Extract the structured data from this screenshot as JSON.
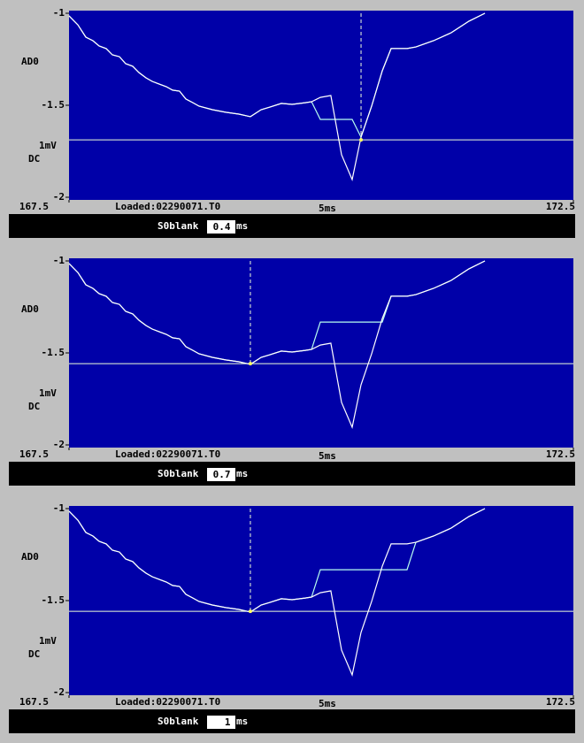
{
  "chart_data": [
    {
      "type": "line",
      "y_label": "AD0",
      "scale_label": "1mV",
      "coupling": "DC",
      "file": "Loaded:02290071.T0",
      "time_scale": "5ms",
      "blank_label": "S0blank",
      "blank_value": " 0.4",
      "blank_unit": "ms",
      "xlim": [
        167.5,
        172.5
      ],
      "xticks": [
        167.5,
        172.5
      ],
      "ylim": [
        -2,
        -1
      ],
      "yticks": [
        -1,
        -1.5,
        -2
      ],
      "x": [
        167.5,
        167.588,
        167.667,
        167.737,
        167.798,
        167.868,
        167.93,
        168.0,
        168.061,
        168.132,
        168.193,
        168.263,
        168.325,
        168.395,
        168.465,
        168.526,
        168.596,
        168.658,
        168.728,
        168.789,
        168.921,
        169.053,
        169.184,
        169.298,
        169.404,
        169.491,
        169.605,
        169.711,
        169.842,
        169.904,
        169.991,
        170.096,
        170.202,
        170.307,
        170.395,
        170.5,
        170.605,
        170.693,
        170.851,
        170.939,
        171.114,
        171.289,
        171.465,
        171.623
      ],
      "series": [
        {
          "color": "#b8fff0",
          "values": [
            -1.014,
            -1.063,
            -1.13,
            -1.149,
            -1.178,
            -1.192,
            -1.226,
            -1.236,
            -1.274,
            -1.288,
            -1.322,
            -1.351,
            -1.37,
            -1.385,
            -1.399,
            -1.418,
            -1.423,
            -1.466,
            -1.486,
            -1.505,
            -1.524,
            -1.538,
            -1.548,
            -1.562,
            -1.524,
            -1.51,
            -1.49,
            -1.495,
            -1.486,
            -1.481,
            -1.577,
            -1.577,
            -1.577,
            -1.577,
            -1.673,
            -1.505,
            -1.313,
            -1.192,
            -1.192,
            -1.183,
            -1.149,
            -1.106,
            -1.043,
            -1.0
          ]
        },
        {
          "color": "#ffffff",
          "values": [
            -1.014,
            -1.063,
            -1.13,
            -1.149,
            -1.178,
            -1.192,
            -1.226,
            -1.236,
            -1.274,
            -1.288,
            -1.322,
            -1.351,
            -1.37,
            -1.385,
            -1.399,
            -1.418,
            -1.423,
            -1.466,
            -1.486,
            -1.505,
            -1.524,
            -1.538,
            -1.548,
            -1.562,
            -1.524,
            -1.51,
            -1.49,
            -1.495,
            -1.486,
            -1.481,
            -1.457,
            -1.447,
            -1.769,
            -1.904,
            -1.673,
            -1.505,
            -1.313,
            -1.192,
            -1.192,
            -1.183,
            -1.149,
            -1.106,
            -1.043,
            -1.0
          ]
        }
      ],
      "cursor": {
        "x": 170.395,
        "y": -1.688,
        "color": "#f0ffd8"
      }
    },
    {
      "type": "line",
      "y_label": "AD0",
      "scale_label": "1mV",
      "coupling": "DC",
      "file": "Loaded:02290071.T0",
      "time_scale": "5ms",
      "blank_label": "S0blank",
      "blank_value": " 0.7",
      "blank_unit": "ms",
      "xlim": [
        167.5,
        172.5
      ],
      "xticks": [
        167.5,
        172.5
      ],
      "ylim": [
        -2,
        -1
      ],
      "yticks": [
        -1,
        -1.5,
        -2
      ],
      "x": [
        167.5,
        167.588,
        167.667,
        167.737,
        167.798,
        167.868,
        167.93,
        168.0,
        168.061,
        168.132,
        168.193,
        168.263,
        168.325,
        168.395,
        168.465,
        168.526,
        168.596,
        168.658,
        168.728,
        168.789,
        168.921,
        169.053,
        169.184,
        169.298,
        169.404,
        169.491,
        169.605,
        169.711,
        169.842,
        169.904,
        169.991,
        170.096,
        170.202,
        170.307,
        170.395,
        170.5,
        170.605,
        170.693,
        170.851,
        170.939,
        171.114,
        171.289,
        171.465,
        171.623
      ],
      "series": [
        {
          "color": "#b8fff0",
          "values": [
            -1.014,
            -1.063,
            -1.13,
            -1.149,
            -1.178,
            -1.192,
            -1.226,
            -1.236,
            -1.274,
            -1.288,
            -1.322,
            -1.351,
            -1.37,
            -1.385,
            -1.399,
            -1.418,
            -1.423,
            -1.466,
            -1.486,
            -1.505,
            -1.524,
            -1.538,
            -1.548,
            -1.562,
            -1.524,
            -1.51,
            -1.49,
            -1.495,
            -1.486,
            -1.481,
            -1.332,
            -1.332,
            -1.332,
            -1.332,
            -1.332,
            -1.332,
            -1.332,
            -1.192,
            -1.192,
            -1.183,
            -1.149,
            -1.106,
            -1.043,
            -1.0
          ]
        },
        {
          "color": "#ffffff",
          "values": [
            -1.014,
            -1.063,
            -1.13,
            -1.149,
            -1.178,
            -1.192,
            -1.226,
            -1.236,
            -1.274,
            -1.288,
            -1.322,
            -1.351,
            -1.37,
            -1.385,
            -1.399,
            -1.418,
            -1.423,
            -1.466,
            -1.486,
            -1.505,
            -1.524,
            -1.538,
            -1.548,
            -1.562,
            -1.524,
            -1.51,
            -1.49,
            -1.495,
            -1.486,
            -1.481,
            -1.457,
            -1.447,
            -1.769,
            -1.904,
            -1.673,
            -1.505,
            -1.313,
            -1.192,
            -1.192,
            -1.183,
            -1.149,
            -1.106,
            -1.043,
            -1.0
          ]
        }
      ],
      "cursor": {
        "x": 169.298,
        "y": -1.558,
        "color": "#f0ffd8"
      }
    },
    {
      "type": "line",
      "y_label": "AD0",
      "scale_label": "1mV",
      "coupling": "DC",
      "file": "Loaded:02290071.T0",
      "time_scale": "5ms",
      "blank_label": "S0blank",
      "blank_value": "   1",
      "blank_unit": "ms",
      "xlim": [
        167.5,
        172.5
      ],
      "xticks": [
        167.5,
        172.5
      ],
      "ylim": [
        -2,
        -1
      ],
      "yticks": [
        -1,
        -1.5,
        -2
      ],
      "x": [
        167.5,
        167.588,
        167.667,
        167.737,
        167.798,
        167.868,
        167.93,
        168.0,
        168.061,
        168.132,
        168.193,
        168.263,
        168.325,
        168.395,
        168.465,
        168.526,
        168.596,
        168.658,
        168.728,
        168.789,
        168.921,
        169.053,
        169.184,
        169.298,
        169.404,
        169.491,
        169.605,
        169.711,
        169.842,
        169.904,
        169.991,
        170.096,
        170.202,
        170.307,
        170.395,
        170.5,
        170.605,
        170.693,
        170.851,
        170.939,
        171.114,
        171.289,
        171.465,
        171.623
      ],
      "series": [
        {
          "color": "#b8fff0",
          "values": [
            -1.014,
            -1.063,
            -1.13,
            -1.149,
            -1.178,
            -1.192,
            -1.226,
            -1.236,
            -1.274,
            -1.288,
            -1.322,
            -1.351,
            -1.37,
            -1.385,
            -1.399,
            -1.418,
            -1.423,
            -1.466,
            -1.486,
            -1.505,
            -1.524,
            -1.538,
            -1.548,
            -1.562,
            -1.524,
            -1.51,
            -1.49,
            -1.495,
            -1.486,
            -1.481,
            -1.332,
            -1.332,
            -1.332,
            -1.332,
            -1.332,
            -1.332,
            -1.332,
            -1.332,
            -1.332,
            -1.183,
            -1.149,
            -1.106,
            -1.043,
            -1.0
          ]
        },
        {
          "color": "#ffffff",
          "values": [
            -1.014,
            -1.063,
            -1.13,
            -1.149,
            -1.178,
            -1.192,
            -1.226,
            -1.236,
            -1.274,
            -1.288,
            -1.322,
            -1.351,
            -1.37,
            -1.385,
            -1.399,
            -1.418,
            -1.423,
            -1.466,
            -1.486,
            -1.505,
            -1.524,
            -1.538,
            -1.548,
            -1.562,
            -1.524,
            -1.51,
            -1.49,
            -1.495,
            -1.486,
            -1.481,
            -1.457,
            -1.447,
            -1.769,
            -1.904,
            -1.673,
            -1.505,
            -1.313,
            -1.192,
            -1.192,
            -1.183,
            -1.149,
            -1.106,
            -1.043,
            -1.0
          ]
        }
      ],
      "cursor": {
        "x": 169.298,
        "y": -1.558,
        "color": "#f0ffd8"
      }
    }
  ]
}
